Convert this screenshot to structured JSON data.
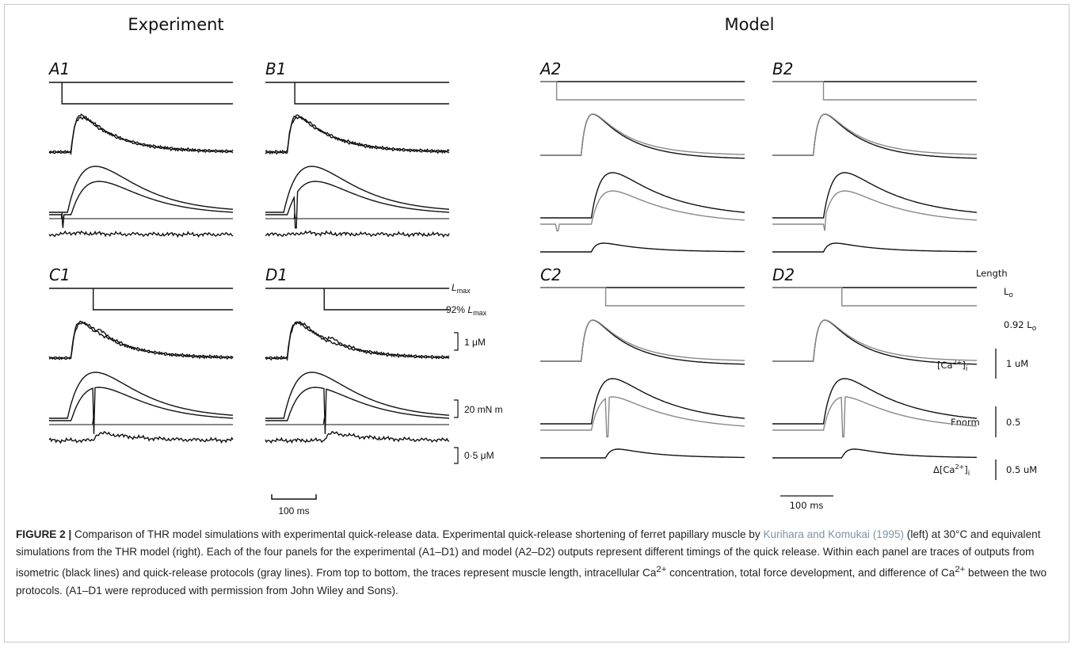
{
  "headings": {
    "experiment": "Experiment",
    "model": "Model"
  },
  "panels": {
    "experiment": [
      "A1",
      "B1",
      "C1",
      "D1"
    ],
    "model": [
      "A2",
      "B2",
      "C2",
      "D2"
    ]
  },
  "experiment_scale": {
    "lmax": {
      "base": "L",
      "sub": "max"
    },
    "lmax92": {
      "prefix": "92%",
      "base": "L",
      "sub": "max"
    },
    "ca": "1 μM",
    "force": "20 mN m",
    "delta": "0·5 μM",
    "time": "100 ms"
  },
  "model_scale": {
    "length": "Length",
    "lo": {
      "base": "L",
      "sub": "o"
    },
    "lo92": {
      "prefix": "0.92",
      "base": "L",
      "sub": "o"
    },
    "ca": {
      "pre": "[Ca",
      "sup": "2+",
      "post": "]",
      "sub": "i"
    },
    "ca_bar": "1 uM",
    "fnorm": "Fnorm",
    "fnorm_bar": "0.5",
    "delta": {
      "pre": "Δ[Ca",
      "sup": "2+",
      "post": "]",
      "sub": "i"
    },
    "delta_bar": "0.5 uM",
    "time": "100 ms"
  },
  "caption": {
    "label": "FIGURE 2 |",
    "text1": " Comparison of THR model simulations with experimental quick-release data. Experimental quick-release shortening of ferret papillary muscle by ",
    "link": "Kurihara and Komukai (1995)",
    "text2": " (left) at 30°C and equivalent simulations from the THR model (right). Each of the four panels for the experimental (A1–D1) and model (A2–D2) outputs represent different timings of the quick release. Within each panel are traces of outputs from isometric (black lines) and quick-release protocols (gray lines). From top to bottom, the traces represent muscle length, intracellular Ca",
    "sup1": "2+",
    "text3": " concentration, total force development, and difference of Ca",
    "sup2": "2+",
    "text4": " between the two protocols. (A1–D1 were reproduced with permission from John Wiley and Sons)."
  }
}
